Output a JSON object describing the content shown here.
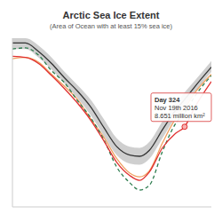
{
  "chart_data": {
    "type": "line",
    "title": "Arctic Sea Ice Extent",
    "subtitle": "(Area of Ocean with at least 15% sea ice)",
    "x": [
      60,
      80,
      100,
      120,
      140,
      160,
      180,
      200,
      220,
      240,
      255,
      270,
      290,
      310,
      324,
      340,
      365
    ],
    "xlim": [
      60,
      365
    ],
    "ylim": [
      2,
      16
    ],
    "tick_labels": false,
    "grid": false,
    "range": {
      "color": "#cfcfcf",
      "lower": [
        15.1,
        15.1,
        14.4,
        13.4,
        12.2,
        11.0,
        9.6,
        7.9,
        6.3,
        5.6,
        5.5,
        6.0,
        7.7,
        9.4,
        10.3,
        11.5,
        13.2
      ],
      "upper": [
        16.0,
        16.0,
        15.4,
        14.4,
        13.2,
        12.1,
        10.9,
        9.3,
        7.7,
        7.0,
        6.9,
        7.4,
        9.1,
        10.6,
        11.5,
        12.5,
        14.1
      ]
    },
    "series": [
      {
        "color": "#333333",
        "line_style": "solid",
        "values": [
          15.6,
          15.6,
          14.9,
          13.9,
          12.7,
          11.6,
          10.3,
          8.6,
          7.0,
          6.3,
          6.2,
          6.7,
          8.4,
          10.0,
          10.9,
          12.0,
          13.6
        ]
      },
      {
        "color": "#f0a060",
        "line_style": "solid",
        "values": [
          14.3,
          14.4,
          14.0,
          13.0,
          12.0,
          10.9,
          9.3,
          7.8,
          6.0,
          4.8,
          4.5,
          5.0,
          7.3,
          9.3,
          10.2,
          11.5,
          13.0
        ]
      },
      {
        "color": "#2e7d4f",
        "line_style": "dashed",
        "values": [
          15.1,
          15.2,
          14.6,
          13.3,
          12.3,
          10.8,
          9.4,
          7.6,
          5.3,
          4.0,
          3.4,
          3.8,
          6.6,
          8.9,
          9.8,
          11.2,
          12.9
        ]
      },
      {
        "color": "#e03030",
        "line_style": "solid",
        "values": [
          14.5,
          14.4,
          13.9,
          12.9,
          11.8,
          10.6,
          9.2,
          7.5,
          5.7,
          4.6,
          4.2,
          4.9,
          6.9,
          8.1,
          8.651,
          10.3,
          12.4
        ]
      }
    ],
    "annotations": [
      {
        "x": 324,
        "y": 8.651,
        "text": [
          "Day 324",
          "Nov 19th 2016",
          "8.651 million km²"
        ]
      }
    ]
  }
}
